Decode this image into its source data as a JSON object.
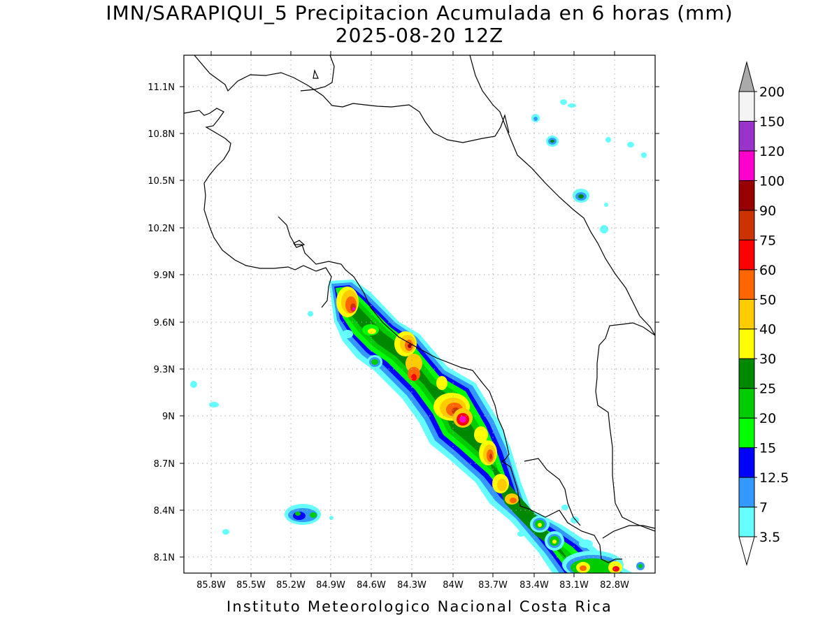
{
  "title_line1": "IMN/SARAPIQUI_5 Precipitacion Acumulada en 6 horas (mm)",
  "title_line2": "2025-08-20 12Z",
  "footer": "Instituto Meteorologico Nacional Costa Rica",
  "axes": {
    "lon_ticks": [
      "85.8W",
      "85.5W",
      "85.2W",
      "84.9W",
      "84.6W",
      "84.3W",
      "84W",
      "83.7W",
      "83.4W",
      "83.1W",
      "82.8W"
    ],
    "lat_ticks": [
      "11.1N",
      "10.8N",
      "10.5N",
      "10.2N",
      "9.9N",
      "9.6N",
      "9.3N",
      "9N",
      "8.7N",
      "8.4N",
      "8.1N"
    ]
  },
  "colorbar": {
    "labels": [
      "3.5",
      "7",
      "12.5",
      "15",
      "20",
      "25",
      "30",
      "40",
      "50",
      "60",
      "75",
      "90",
      "100",
      "120",
      "150",
      "200"
    ],
    "colors": [
      "#66ffff",
      "#3399ff",
      "#0000ff",
      "#00ff00",
      "#00cc00",
      "#008800",
      "#ffff00",
      "#ffcc00",
      "#ff6600",
      "#ff0000",
      "#cc3300",
      "#990000",
      "#ff00cc",
      "#9933cc",
      "#f4f4f4",
      "#aaaaaa"
    ]
  }
}
